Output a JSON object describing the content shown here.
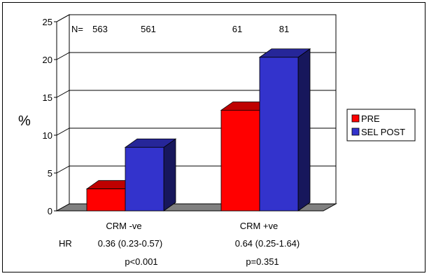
{
  "chart_data": {
    "type": "bar",
    "title": "",
    "xlabel": "",
    "ylabel": "%",
    "ylim": [
      0,
      25
    ],
    "yticks": [
      0,
      5,
      10,
      15,
      20,
      25
    ],
    "grid": true,
    "legend_position": "right",
    "categories": [
      "CRM -ve",
      "CRM +ve"
    ],
    "series": [
      {
        "name": "PRE",
        "values": [
          2.9,
          13.3
        ],
        "color": "#ff0000"
      },
      {
        "name": "SEL POST",
        "values": [
          8.4,
          20.3
        ],
        "color": "#3333cc"
      }
    ],
    "n_prefix": "N=",
    "n_labels": [
      [
        "563",
        "561"
      ],
      [
        "61",
        "81"
      ]
    ],
    "hr_prefix": "HR",
    "hr_values": [
      "0.36 (0.23-0.57)",
      "0.64 (0.25-1.64)"
    ],
    "p_values": [
      "p<0.001",
      "p=0.351"
    ]
  }
}
